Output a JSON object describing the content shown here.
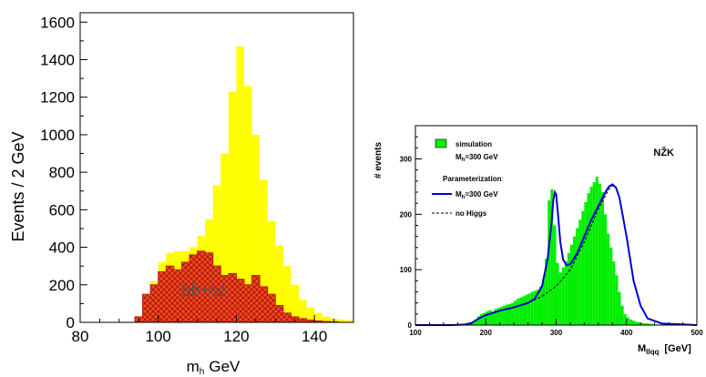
{
  "chart_data": [
    {
      "type": "bar",
      "title": "",
      "xlabel": "m_h GeV",
      "xlabel_main": "m",
      "xlabel_sub": "h",
      "xlabel_unit": "GeV",
      "ylabel": "Events / 2 GeV",
      "xlim": [
        80,
        150
      ],
      "ylim": [
        0,
        1650
      ],
      "xticks": [
        80,
        100,
        120,
        140
      ],
      "yticks": [
        0,
        200,
        400,
        600,
        800,
        1000,
        1200,
        1400,
        1600
      ],
      "bin_width": 2,
      "bin_edges_start": 80,
      "grid": false,
      "annotation": "bb̄+cc̄",
      "series": [
        {
          "role": "total",
          "color": "#ffff00",
          "values": [
            0,
            0,
            0,
            0,
            0,
            0,
            0,
            20,
            150,
            220,
            320,
            370,
            380,
            380,
            400,
            460,
            550,
            730,
            900,
            1230,
            1470,
            1260,
            1000,
            760,
            540,
            410,
            300,
            200,
            120,
            80,
            50,
            30,
            20,
            15,
            10
          ]
        },
        {
          "name": "bb̄+cc̄",
          "role": "background",
          "color": "#e8501a",
          "hatch": true,
          "values": [
            0,
            0,
            0,
            0,
            0,
            0,
            0,
            30,
            150,
            200,
            270,
            300,
            280,
            320,
            360,
            380,
            370,
            300,
            250,
            260,
            230,
            200,
            250,
            190,
            150,
            90,
            50,
            30,
            20,
            12,
            8,
            5,
            3,
            0,
            0
          ]
        }
      ]
    },
    {
      "type": "bar",
      "title": "",
      "annotation": "NŽK",
      "xlabel": "M_llqq [GeV]",
      "xlabel_main": "M",
      "xlabel_sub": "llqq",
      "xlabel_unit": "[GeV]",
      "ylabel": "# events",
      "xlim": [
        100,
        500
      ],
      "ylim": [
        0,
        360
      ],
      "xticks": [
        100,
        200,
        300,
        400,
        500
      ],
      "yticks": [
        0,
        100,
        200,
        300
      ],
      "grid": false,
      "legend": {
        "position": "top-left",
        "entries": [
          {
            "label": "simulation",
            "kind": "box",
            "color": "#00ee00"
          },
          {
            "label": "M",
            "sub": "h",
            "label_end": "=300 GeV",
            "kind": "text"
          },
          {
            "label": "Parameterization",
            "label_end": ":",
            "kind": "header"
          },
          {
            "label": "M",
            "sub": "h",
            "label_end": "=300 GeV",
            "kind": "line",
            "color": "#0000cc"
          },
          {
            "label": "no Higgs",
            "kind": "dash",
            "color": "#000000"
          }
        ]
      },
      "series": [
        {
          "name": "simulation",
          "kind": "histogram",
          "color": "#00ee00",
          "x_start": 100,
          "bin_width": 4,
          "values": [
            0,
            0,
            0,
            0,
            0,
            0,
            0,
            0,
            0,
            0,
            0,
            0,
            0,
            0,
            0,
            0,
            0,
            0,
            1,
            2,
            5,
            10,
            16,
            20,
            22,
            25,
            27,
            25,
            29,
            31,
            33,
            35,
            37,
            38,
            40,
            44,
            48,
            50,
            52,
            55,
            57,
            60,
            62,
            64,
            70,
            83,
            120,
            225,
            245,
            180,
            112,
            95,
            104,
            115,
            130,
            145,
            160,
            175,
            190,
            206,
            222,
            238,
            250,
            258,
            268,
            255,
            240,
            200,
            165,
            140,
            115,
            90,
            60,
            35,
            20,
            14,
            10,
            8,
            6,
            5,
            4,
            3,
            3,
            2,
            2,
            1,
            1,
            1,
            1,
            0,
            0,
            0,
            0,
            0,
            0,
            0,
            0,
            0,
            0,
            0
          ]
        },
        {
          "name": "Parameterization M_h=300 GeV",
          "kind": "line",
          "color": "#0000cc",
          "x": [
            100,
            150,
            170,
            180,
            190,
            200,
            220,
            240,
            260,
            270,
            280,
            288,
            293,
            296,
            298,
            300,
            303,
            306,
            310,
            315,
            320,
            330,
            340,
            350,
            360,
            370,
            375,
            380,
            385,
            390,
            400,
            410,
            420,
            430,
            450,
            500
          ],
          "y": [
            0,
            0,
            1,
            4,
            12,
            18,
            26,
            32,
            40,
            48,
            70,
            120,
            180,
            225,
            240,
            236,
            195,
            150,
            118,
            108,
            110,
            130,
            160,
            190,
            215,
            240,
            250,
            254,
            248,
            230,
            160,
            80,
            35,
            12,
            3,
            0
          ]
        },
        {
          "name": "no Higgs",
          "kind": "dashed",
          "color": "#000000",
          "x": [
            100,
            170,
            180,
            190,
            200,
            220,
            240,
            260,
            280,
            300,
            320,
            340,
            360,
            375,
            380,
            385,
            390,
            400,
            410,
            420,
            430,
            450,
            500
          ],
          "y": [
            0,
            1,
            4,
            12,
            18,
            26,
            32,
            40,
            52,
            70,
            100,
            150,
            210,
            245,
            252,
            248,
            230,
            160,
            80,
            35,
            12,
            3,
            0
          ]
        }
      ]
    }
  ]
}
